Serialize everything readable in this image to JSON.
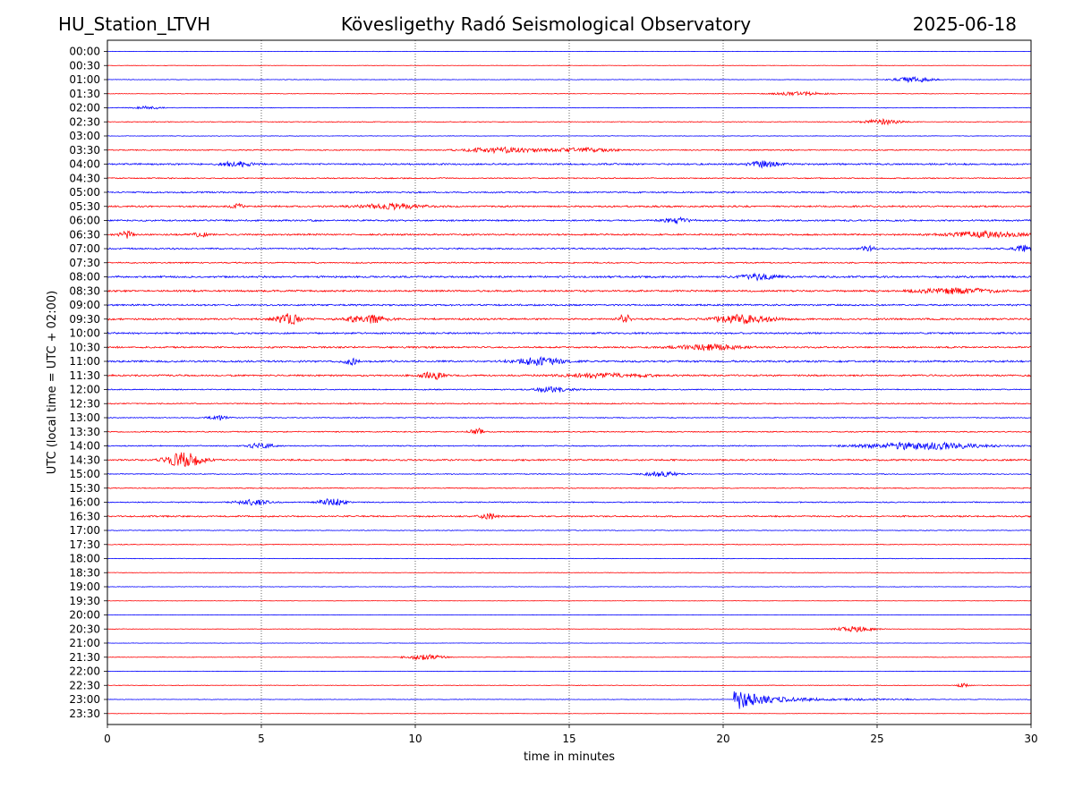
{
  "header": {
    "station": "HU_Station_LTVH",
    "observatory": "Kövesligethy Radó Seismological Observatory",
    "date": "2025-06-18"
  },
  "chart_data": {
    "type": "line",
    "title": "Kövesligethy Radó Seismological Observatory",
    "xlabel": "time in minutes",
    "ylabel": "UTC (local time = UTC + 02:00)",
    "xlim": [
      0,
      30
    ],
    "xticks": [
      0,
      5,
      10,
      15,
      20,
      25,
      30
    ],
    "grid": "vertical dotted lines at 5, 10, 15, 20, 25",
    "colors": [
      "#0000ff",
      "#ff0000"
    ],
    "rows": [
      "00:00",
      "00:30",
      "01:00",
      "01:30",
      "02:00",
      "02:30",
      "03:00",
      "03:30",
      "04:00",
      "04:30",
      "05:00",
      "05:30",
      "06:00",
      "06:30",
      "07:00",
      "07:30",
      "08:00",
      "08:30",
      "09:00",
      "09:30",
      "10:00",
      "10:30",
      "11:00",
      "11:30",
      "12:00",
      "12:30",
      "13:00",
      "13:30",
      "14:00",
      "14:30",
      "15:00",
      "15:30",
      "16:00",
      "16:30",
      "17:00",
      "17:30",
      "18:00",
      "18:30",
      "19:00",
      "19:30",
      "20:00",
      "20:30",
      "21:00",
      "21:30",
      "22:00",
      "22:30",
      "23:00",
      "23:30"
    ],
    "noise": [
      0.2,
      0.2,
      0.3,
      0.3,
      0.3,
      0.4,
      0.3,
      0.6,
      0.9,
      0.6,
      0.8,
      0.9,
      0.9,
      0.9,
      0.8,
      0.7,
      1.0,
      1.0,
      0.9,
      1.0,
      0.9,
      0.9,
      1.0,
      0.9,
      0.6,
      0.6,
      0.5,
      0.6,
      0.6,
      0.9,
      0.5,
      0.5,
      0.6,
      0.8,
      0.4,
      0.4,
      0.3,
      0.3,
      0.3,
      0.2,
      0.2,
      0.3,
      0.2,
      0.3,
      0.2,
      0.3,
      0.3,
      0.2
    ],
    "events": [
      {
        "row": 2,
        "t": 26.2,
        "amp": 3,
        "dur": 0.6
      },
      {
        "row": 3,
        "t": 22.5,
        "amp": 2,
        "dur": 0.8
      },
      {
        "row": 4,
        "t": 1.3,
        "amp": 2,
        "dur": 0.4
      },
      {
        "row": 5,
        "t": 25.2,
        "amp": 3,
        "dur": 0.6
      },
      {
        "row": 7,
        "t": 12.8,
        "amp": 3,
        "dur": 1.2
      },
      {
        "row": 7,
        "t": 15.5,
        "amp": 2,
        "dur": 1.0
      },
      {
        "row": 8,
        "t": 4.2,
        "amp": 3,
        "dur": 0.5
      },
      {
        "row": 8,
        "t": 21.3,
        "amp": 3,
        "dur": 0.5
      },
      {
        "row": 11,
        "t": 4.2,
        "amp": 3,
        "dur": 0.2
      },
      {
        "row": 11,
        "t": 9.2,
        "amp": 3,
        "dur": 1.0
      },
      {
        "row": 12,
        "t": 18.5,
        "amp": 3,
        "dur": 0.4
      },
      {
        "row": 13,
        "t": 0.6,
        "amp": 4,
        "dur": 0.2
      },
      {
        "row": 13,
        "t": 3.0,
        "amp": 3,
        "dur": 0.2
      },
      {
        "row": 13,
        "t": 28.5,
        "amp": 3,
        "dur": 1.2
      },
      {
        "row": 14,
        "t": 24.7,
        "amp": 4,
        "dur": 0.2
      },
      {
        "row": 14,
        "t": 29.8,
        "amp": 4,
        "dur": 0.3
      },
      {
        "row": 16,
        "t": 21.2,
        "amp": 3,
        "dur": 0.6
      },
      {
        "row": 17,
        "t": 27.5,
        "amp": 3,
        "dur": 1.2
      },
      {
        "row": 19,
        "t": 5.9,
        "amp": 6,
        "dur": 0.4
      },
      {
        "row": 19,
        "t": 8.4,
        "amp": 5,
        "dur": 0.6
      },
      {
        "row": 19,
        "t": 16.8,
        "amp": 5,
        "dur": 0.2
      },
      {
        "row": 19,
        "t": 20.6,
        "amp": 5,
        "dur": 0.9
      },
      {
        "row": 21,
        "t": 19.5,
        "amp": 3,
        "dur": 1.0
      },
      {
        "row": 22,
        "t": 7.9,
        "amp": 4,
        "dur": 0.2
      },
      {
        "row": 22,
        "t": 14.0,
        "amp": 4,
        "dur": 0.8
      },
      {
        "row": 23,
        "t": 10.6,
        "amp": 4,
        "dur": 0.4
      },
      {
        "row": 23,
        "t": 16.2,
        "amp": 2,
        "dur": 1.5
      },
      {
        "row": 24,
        "t": 14.5,
        "amp": 3,
        "dur": 0.6
      },
      {
        "row": 26,
        "t": 3.6,
        "amp": 3,
        "dur": 0.3
      },
      {
        "row": 27,
        "t": 12.0,
        "amp": 4,
        "dur": 0.2
      },
      {
        "row": 28,
        "t": 5.0,
        "amp": 3,
        "dur": 0.4
      },
      {
        "row": 28,
        "t": 26.5,
        "amp": 4,
        "dur": 1.8
      },
      {
        "row": 29,
        "t": 2.5,
        "amp": 8,
        "dur": 0.6
      },
      {
        "row": 30,
        "t": 18.0,
        "amp": 3,
        "dur": 0.5
      },
      {
        "row": 32,
        "t": 7.3,
        "amp": 4,
        "dur": 0.4
      },
      {
        "row": 32,
        "t": 4.7,
        "amp": 3,
        "dur": 0.5
      },
      {
        "row": 33,
        "t": 12.4,
        "amp": 3,
        "dur": 0.3
      },
      {
        "row": 41,
        "t": 24.3,
        "amp": 3,
        "dur": 0.6
      },
      {
        "row": 43,
        "t": 10.3,
        "amp": 3,
        "dur": 0.6
      },
      {
        "row": 45,
        "t": 27.8,
        "amp": 2,
        "dur": 0.2
      },
      {
        "row": 46,
        "t": 20.35,
        "amp": 11,
        "dur": 0.7,
        "coda": 4.5
      }
    ]
  }
}
